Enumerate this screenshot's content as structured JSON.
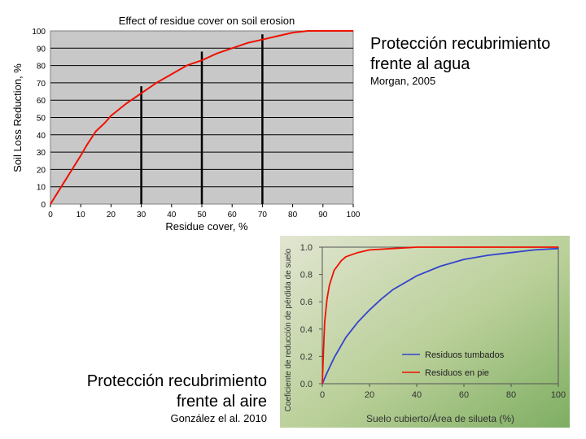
{
  "captions": {
    "water": {
      "title_line1": "Protección recubrimiento",
      "title_line2": "frente al agua",
      "citation": "Morgan, 2005"
    },
    "wind": {
      "title_line1": "Protección recubrimiento",
      "title_line2": "frente al aire",
      "citation": "González el al. 2010"
    }
  },
  "chart_data": [
    {
      "type": "line",
      "title": "Effect of residue cover on soil erosion",
      "xlabel": "Residue cover,  %",
      "ylabel": "Soil Loss Reduction,  %",
      "xlim": [
        0,
        100
      ],
      "ylim": [
        0,
        100
      ],
      "xticks": [
        "0",
        "10",
        "20",
        "30",
        "40",
        "50",
        "60",
        "70",
        "80",
        "90",
        "100"
      ],
      "yticks": [
        "0",
        "10",
        "20",
        "30",
        "40",
        "50",
        "60",
        "70",
        "80",
        "90",
        "100"
      ],
      "grid": true,
      "background": "#c8c8c8",
      "series": [
        {
          "color": "#ee1100",
          "x": [
            0,
            5,
            10,
            12,
            15,
            18,
            20,
            25,
            30,
            35,
            40,
            45,
            50,
            55,
            60,
            65,
            70,
            75,
            80,
            85,
            100
          ],
          "y": [
            0,
            14,
            28,
            34,
            42,
            47,
            51,
            58,
            64,
            70,
            75,
            80,
            83,
            87,
            90,
            93,
            95,
            97,
            99,
            100,
            100
          ]
        }
      ],
      "reference_lines": [
        {
          "x": 30,
          "y_top": 68
        },
        {
          "x": 50,
          "y_top": 88
        },
        {
          "x": 70,
          "y_top": 98
        }
      ]
    },
    {
      "type": "line",
      "title": "",
      "xlabel": "Suelo cubierto/Área de silueta (%)",
      "ylabel": "Coeficiente de reducción de pérdida de suelo",
      "xlim": [
        0,
        100
      ],
      "ylim": [
        0,
        1.0
      ],
      "xticks": [
        "0",
        "20",
        "40",
        "60",
        "80",
        "100"
      ],
      "yticks": [
        "0.0",
        "0.2",
        "0.4",
        "0.6",
        "0.8",
        "1.0"
      ],
      "legend": "bottom-right",
      "series": [
        {
          "name": "Residuos tumbados",
          "color": "#3344cc",
          "x": [
            0,
            2,
            5,
            10,
            15,
            20,
            25,
            30,
            40,
            50,
            60,
            70,
            80,
            90,
            100
          ],
          "y": [
            0,
            0.08,
            0.19,
            0.34,
            0.45,
            0.54,
            0.62,
            0.69,
            0.79,
            0.86,
            0.91,
            0.94,
            0.96,
            0.98,
            0.99
          ]
        },
        {
          "name": "Residuos en pie",
          "color": "#ee1100",
          "x": [
            0,
            0.5,
            1,
            2,
            3,
            5,
            8,
            10,
            15,
            20,
            30,
            40,
            60,
            100
          ],
          "y": [
            0,
            0.25,
            0.45,
            0.62,
            0.72,
            0.83,
            0.9,
            0.93,
            0.96,
            0.98,
            0.99,
            1.0,
            1.0,
            1.0
          ]
        }
      ]
    }
  ]
}
